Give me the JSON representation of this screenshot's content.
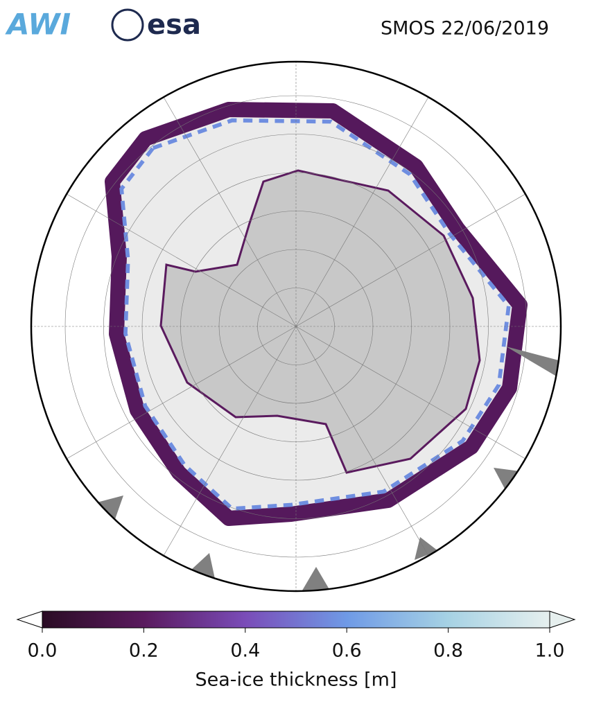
{
  "header": {
    "logos": [
      "AWI",
      "esa"
    ],
    "title": "SMOS 22/06/2019"
  },
  "colorbar": {
    "label": "Sea-ice thickness [m]",
    "lim": [
      0,
      1
    ],
    "ticks": [
      {
        "value": 0,
        "label": "0.0"
      },
      {
        "value": 0.2,
        "label": "0.2"
      },
      {
        "value": 0.4,
        "label": "0.4"
      },
      {
        "value": 0.6,
        "label": "0.6"
      },
      {
        "value": 0.8,
        "label": "0.8"
      },
      {
        "value": 1,
        "label": "1.0"
      }
    ],
    "colors": [
      "#2a0c24",
      "#5a1a5e",
      "#7a4cb8",
      "#6f9ae6",
      "#a6d2e4",
      "#e6efee"
    ]
  }
}
